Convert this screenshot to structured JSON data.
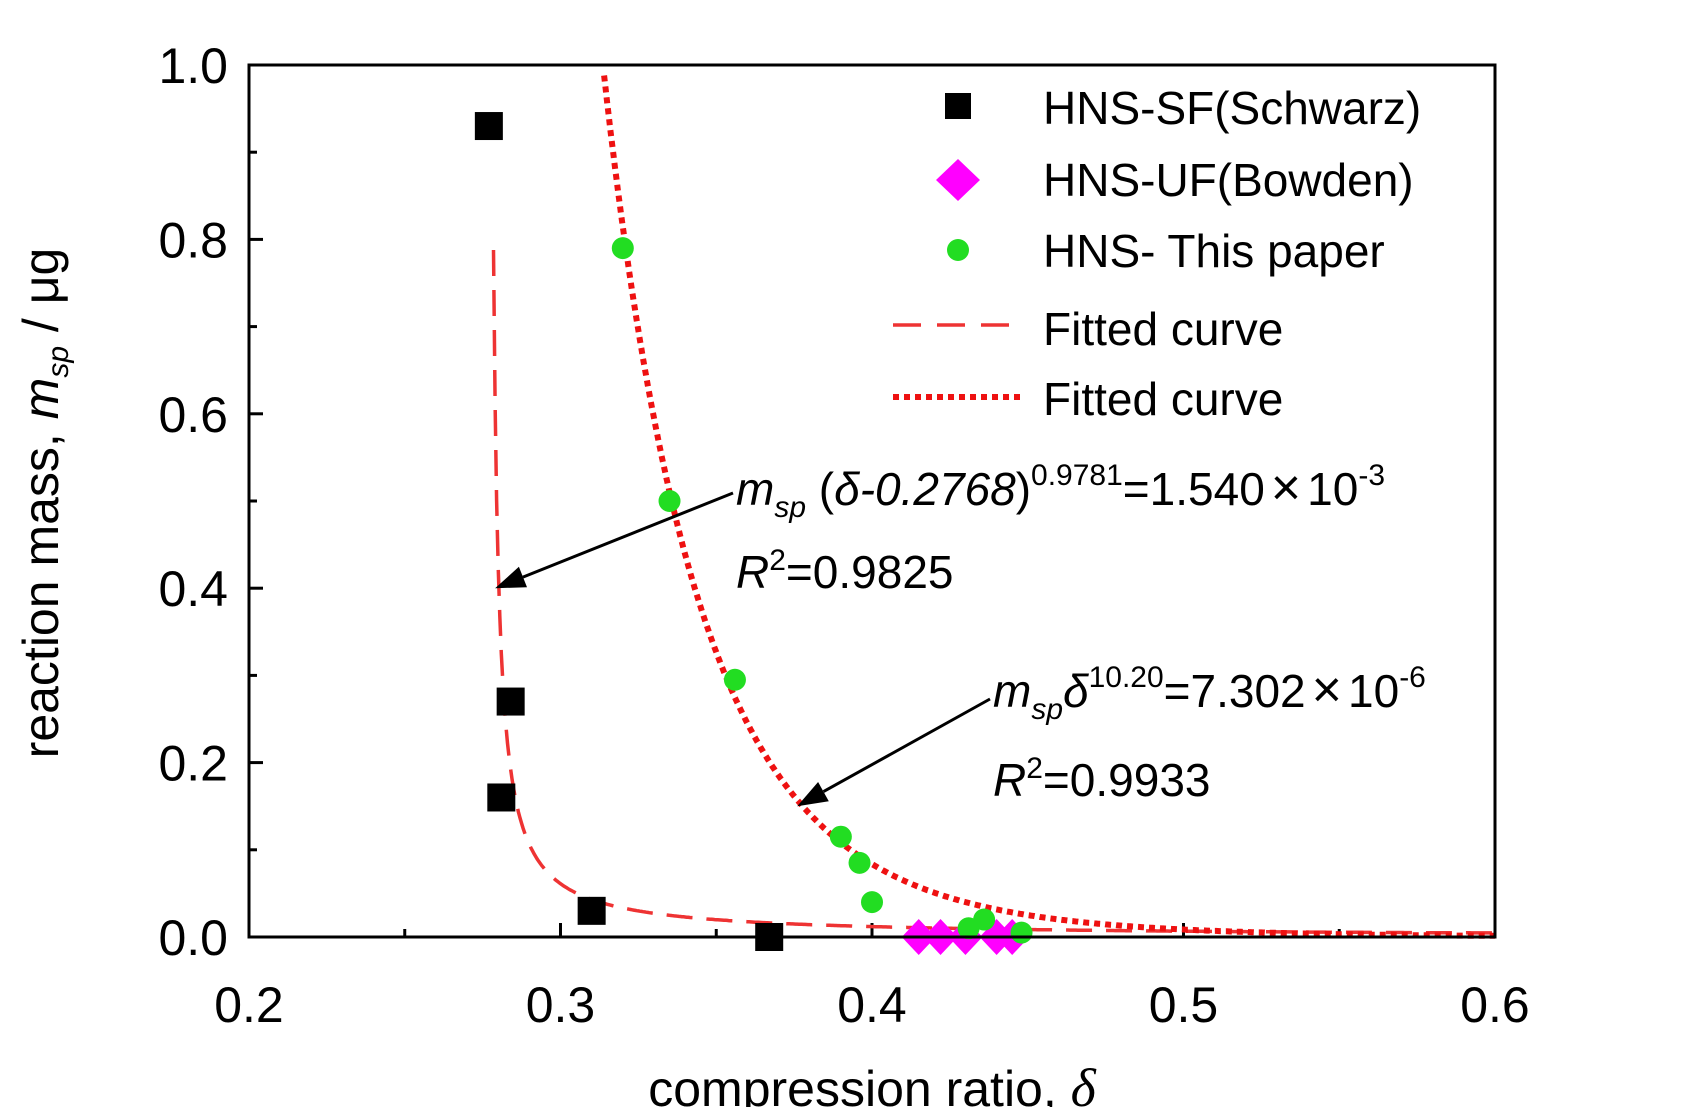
{
  "chart_data": {
    "type": "scatter",
    "title": "",
    "xlabel": "compression ratio, ",
    "xlabel_symbol": "δ",
    "ylabel": "reaction mass, ",
    "ylabel_symbol": "m",
    "ylabel_sub": "sp",
    "ylabel_unit": " / μg",
    "xlim": [
      0.2,
      0.6
    ],
    "ylim": [
      0.0,
      1.0
    ],
    "xticks": [
      "0.2",
      "0.3",
      "0.4",
      "0.5",
      "0.6"
    ],
    "yticks": [
      "0.0",
      "0.2",
      "0.4",
      "0.6",
      "0.8",
      "1.0"
    ],
    "xtick_values": [
      0.2,
      0.3,
      0.4,
      0.5,
      0.6
    ],
    "ytick_values": [
      0.0,
      0.2,
      0.4,
      0.6,
      0.8,
      1.0
    ],
    "grid": false,
    "legend_position": "top-right",
    "series": [
      {
        "name": "HNS-SF(Schwarz)",
        "marker": "square",
        "color": "#000000",
        "points": [
          [
            0.277,
            0.93
          ],
          [
            0.284,
            0.27
          ],
          [
            0.281,
            0.16
          ],
          [
            0.31,
            0.03
          ],
          [
            0.367,
            0.0
          ]
        ]
      },
      {
        "name": "HNS-UF(Bowden)",
        "marker": "diamond",
        "color": "#ff00ff",
        "points": [
          [
            0.415,
            0.0
          ],
          [
            0.422,
            0.0
          ],
          [
            0.43,
            0.0
          ],
          [
            0.44,
            0.0
          ],
          [
            0.445,
            0.0
          ]
        ]
      },
      {
        "name": "HNS- This paper",
        "marker": "circle",
        "color": "#22dd22",
        "points": [
          [
            0.32,
            0.79
          ],
          [
            0.335,
            0.5
          ],
          [
            0.356,
            0.295
          ],
          [
            0.39,
            0.115
          ],
          [
            0.396,
            0.085
          ],
          [
            0.4,
            0.04
          ],
          [
            0.436,
            0.02
          ],
          [
            0.431,
            0.01
          ],
          [
            0.448,
            0.005
          ]
        ]
      },
      {
        "name": "Fitted curve",
        "line": "dashed",
        "color": "#ee3333",
        "equation": {
          "coef": 0.00154,
          "offset": 0.2768,
          "power": 0.9781
        }
      },
      {
        "name": "Fitted curve",
        "line": "dotted",
        "color": "#ee1111",
        "equation": {
          "coef": 7.302e-06,
          "offset": 0,
          "power": 10.2
        }
      }
    ],
    "annotations": [
      {
        "id": "eq1",
        "m": "m",
        "sub": "sp",
        "open": " (",
        "delta": "δ",
        "shift": "-0.2768",
        "close": ")",
        "exp": "0.9781",
        "rhs": "=1.540",
        "times": "×",
        "base": "10",
        "base_exp": "-3",
        "r_label": "R",
        "r_exp": "2",
        "r_val": "=0.9825",
        "arrow_to": [
          0.279,
          0.4
        ]
      },
      {
        "id": "eq2",
        "m": "m",
        "sub": "sp",
        "delta": "δ",
        "exp": "10.20",
        "rhs": "=7.302",
        "times": "×",
        "base": "10",
        "base_exp": "-6",
        "r_label": "R",
        "r_exp": "2",
        "r_val": "=0.9933",
        "arrow_to": [
          0.376,
          0.15
        ]
      }
    ]
  }
}
